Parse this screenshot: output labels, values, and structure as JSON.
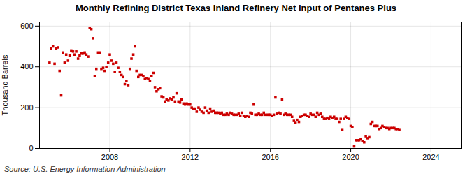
{
  "chart_data": {
    "type": "scatter",
    "title": "Monthly Refining District Texas Inland Refinery Net Input of Pentanes Plus",
    "ylabel": "Thousand Barrels",
    "source": "Source: U.S. Energy Information Administration",
    "color": "#cc0000",
    "marker": "square",
    "grid": true,
    "xlim": [
      2004.5,
      2025.5
    ],
    "xticks": [
      2008,
      2012,
      2016,
      2020,
      2024
    ],
    "ylim": [
      0,
      620
    ],
    "yticks": [
      0,
      200,
      400,
      600
    ],
    "x": [
      2005.0,
      2005.08,
      2005.17,
      2005.25,
      2005.33,
      2005.42,
      2005.5,
      2005.58,
      2005.67,
      2005.75,
      2005.83,
      2005.92,
      2006.0,
      2006.08,
      2006.17,
      2006.25,
      2006.33,
      2006.42,
      2006.5,
      2006.58,
      2006.67,
      2006.75,
      2006.83,
      2006.92,
      2007.0,
      2007.08,
      2007.17,
      2007.25,
      2007.33,
      2007.42,
      2007.5,
      2007.58,
      2007.67,
      2007.75,
      2007.83,
      2007.92,
      2008.0,
      2008.08,
      2008.17,
      2008.25,
      2008.33,
      2008.42,
      2008.5,
      2008.58,
      2008.67,
      2008.75,
      2008.83,
      2008.92,
      2009.0,
      2009.08,
      2009.17,
      2009.25,
      2009.33,
      2009.42,
      2009.5,
      2009.58,
      2009.67,
      2009.75,
      2009.83,
      2009.92,
      2010.0,
      2010.08,
      2010.17,
      2010.25,
      2010.33,
      2010.42,
      2010.5,
      2010.58,
      2010.67,
      2010.75,
      2010.83,
      2010.92,
      2011.0,
      2011.08,
      2011.17,
      2011.25,
      2011.33,
      2011.42,
      2011.5,
      2011.58,
      2011.67,
      2011.75,
      2011.83,
      2011.92,
      2012.0,
      2012.08,
      2012.17,
      2012.25,
      2012.33,
      2012.42,
      2012.5,
      2012.58,
      2012.67,
      2012.75,
      2012.83,
      2012.92,
      2013.0,
      2013.08,
      2013.17,
      2013.25,
      2013.33,
      2013.42,
      2013.5,
      2013.58,
      2013.67,
      2013.75,
      2013.83,
      2013.92,
      2014.0,
      2014.08,
      2014.17,
      2014.25,
      2014.33,
      2014.42,
      2014.5,
      2014.58,
      2014.67,
      2014.75,
      2014.83,
      2014.92,
      2015.0,
      2015.08,
      2015.17,
      2015.25,
      2015.33,
      2015.42,
      2015.5,
      2015.58,
      2015.67,
      2015.75,
      2015.83,
      2015.92,
      2016.0,
      2016.08,
      2016.17,
      2016.25,
      2016.33,
      2016.42,
      2016.5,
      2016.58,
      2016.67,
      2016.75,
      2016.83,
      2016.92,
      2017.0,
      2017.08,
      2017.17,
      2017.25,
      2017.33,
      2017.42,
      2017.5,
      2017.58,
      2017.67,
      2017.75,
      2017.83,
      2017.92,
      2018.0,
      2018.08,
      2018.17,
      2018.25,
      2018.33,
      2018.42,
      2018.5,
      2018.58,
      2018.67,
      2018.75,
      2018.83,
      2018.92,
      2019.0,
      2019.08,
      2019.17,
      2019.25,
      2019.33,
      2019.42,
      2019.5,
      2019.58,
      2019.67,
      2019.75,
      2019.83,
      2019.92,
      2020.0,
      2020.08,
      2020.17,
      2020.25,
      2020.33,
      2020.42,
      2020.5,
      2020.58,
      2020.67,
      2020.75,
      2020.83,
      2020.92,
      2021.0,
      2021.08,
      2021.17,
      2021.25,
      2021.33,
      2021.42,
      2021.5,
      2021.58,
      2021.67,
      2021.75,
      2021.83,
      2021.92,
      2022.0,
      2022.08,
      2022.17,
      2022.25,
      2022.33,
      2022.42
    ],
    "values": [
      420,
      490,
      500,
      415,
      490,
      495,
      380,
      260,
      470,
      420,
      460,
      430,
      455,
      480,
      475,
      460,
      475,
      440,
      455,
      465,
      465,
      470,
      460,
      450,
      590,
      585,
      540,
      355,
      390,
      470,
      470,
      390,
      395,
      380,
      400,
      420,
      460,
      430,
      415,
      375,
      420,
      395,
      375,
      360,
      350,
      315,
      330,
      310,
      390,
      440,
      460,
      500,
      380,
      350,
      360,
      360,
      355,
      340,
      345,
      340,
      330,
      355,
      370,
      300,
      280,
      290,
      295,
      255,
      250,
      230,
      240,
      235,
      245,
      240,
      250,
      230,
      270,
      230,
      225,
      240,
      220,
      215,
      220,
      215,
      215,
      200,
      195,
      195,
      180,
      200,
      190,
      180,
      175,
      200,
      185,
      175,
      195,
      180,
      185,
      175,
      175,
      175,
      170,
      175,
      165,
      165,
      170,
      165,
      175,
      170,
      165,
      165,
      165,
      170,
      160,
      175,
      160,
      155,
      160,
      155,
      175,
      170,
      215,
      165,
      165,
      170,
      165,
      165,
      175,
      165,
      165,
      165,
      165,
      160,
      165,
      250,
      170,
      175,
      170,
      240,
      165,
      170,
      165,
      165,
      165,
      155,
      135,
      125,
      140,
      130,
      155,
      160,
      165,
      165,
      160,
      155,
      170,
      165,
      165,
      155,
      175,
      165,
      170,
      155,
      145,
      145,
      150,
      145,
      155,
      150,
      155,
      145,
      145,
      130,
      145,
      90,
      145,
      155,
      150,
      145,
      110,
      105,
      10,
      40,
      40,
      40,
      45,
      35,
      30,
      60,
      50,
      55,
      120,
      130,
      110,
      110,
      110,
      95,
      100,
      110,
      105,
      100,
      100,
      95,
      100,
      100,
      100,
      95,
      95,
      90
    ]
  }
}
